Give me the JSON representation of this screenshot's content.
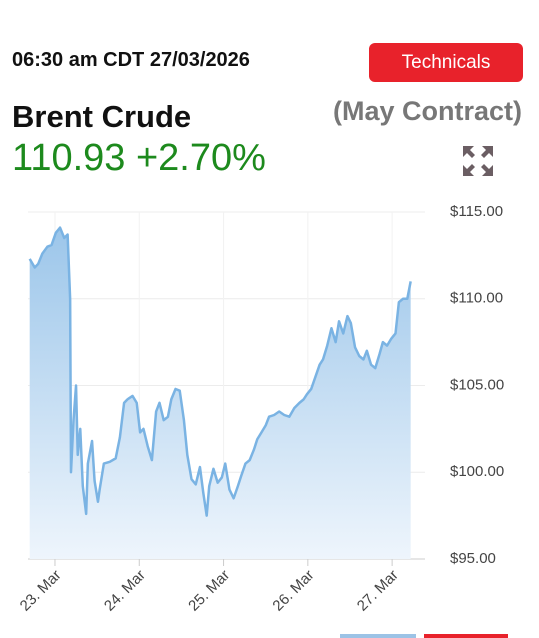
{
  "header": {
    "timestamp": "06:30 am CDT 27/03/2026",
    "button": "Technicals",
    "name": "Brent Crude",
    "contract": "(May Contract)",
    "price": "110.93",
    "change": "+2.70%"
  },
  "chart_data": {
    "type": "area",
    "color": "#7ab3e3",
    "grid": true,
    "xlim": [
      22.68,
      27.39
    ],
    "ylim": [
      95,
      115
    ],
    "xticks": [
      {
        "value": 23,
        "label": "23. Mar"
      },
      {
        "value": 24,
        "label": "24. Mar"
      },
      {
        "value": 25,
        "label": "25. Mar"
      },
      {
        "value": 26,
        "label": "26. Mar"
      },
      {
        "value": 27,
        "label": "27. Mar"
      }
    ],
    "yticks": [
      {
        "value": 95,
        "label": "$95.00"
      },
      {
        "value": 100,
        "label": "$100.00"
      },
      {
        "value": 105,
        "label": "$105.00"
      },
      {
        "value": 110,
        "label": "$110.00"
      },
      {
        "value": 115,
        "label": "$115.00"
      }
    ],
    "x": [
      22.7,
      22.76,
      22.8,
      22.85,
      22.91,
      22.96,
      23.01,
      23.06,
      23.11,
      23.15,
      23.18,
      23.19,
      23.22,
      23.25,
      23.27,
      23.3,
      23.33,
      23.37,
      23.39,
      23.44,
      23.47,
      23.51,
      23.53,
      23.58,
      23.65,
      23.72,
      23.77,
      23.82,
      23.86,
      23.92,
      23.97,
      24.01,
      24.05,
      24.1,
      24.15,
      24.2,
      24.24,
      24.29,
      24.34,
      24.38,
      24.43,
      24.48,
      24.53,
      24.57,
      24.62,
      24.67,
      24.72,
      24.76,
      24.8,
      24.83,
      24.88,
      24.93,
      24.98,
      25.02,
      25.07,
      25.12,
      25.17,
      25.21,
      25.26,
      25.31,
      25.36,
      25.4,
      25.45,
      25.5,
      25.54,
      25.6,
      25.66,
      25.72,
      25.78,
      25.84,
      25.9,
      25.95,
      25.99,
      26.04,
      26.09,
      26.14,
      26.18,
      26.23,
      26.28,
      26.33,
      26.37,
      26.42,
      26.47,
      26.51,
      26.56,
      26.61,
      26.66,
      26.7,
      26.75,
      26.8,
      26.85,
      26.89,
      26.94,
      26.99,
      27.04,
      27.08,
      27.13,
      27.18,
      27.22
    ],
    "values": [
      112.3,
      111.8,
      112.0,
      112.6,
      113.0,
      113.1,
      113.8,
      114.1,
      113.5,
      113.7,
      110.0,
      100.0,
      103.0,
      105.0,
      101.0,
      102.5,
      99.2,
      97.6,
      100.5,
      101.8,
      99.5,
      98.3,
      99.0,
      100.5,
      100.6,
      100.8,
      102.0,
      104.0,
      104.2,
      104.4,
      104.0,
      102.3,
      102.5,
      101.5,
      100.7,
      103.5,
      104.0,
      103.0,
      103.2,
      104.2,
      104.8,
      104.7,
      103.0,
      101.0,
      99.6,
      99.3,
      100.3,
      98.8,
      97.5,
      99.2,
      100.2,
      99.4,
      99.7,
      100.5,
      99.0,
      98.5,
      99.2,
      99.8,
      100.5,
      100.7,
      101.3,
      101.9,
      102.3,
      102.7,
      103.2,
      103.3,
      103.5,
      103.3,
      103.2,
      103.7,
      104.0,
      104.2,
      104.5,
      104.8,
      105.5,
      106.2,
      106.5,
      107.3,
      108.3,
      107.5,
      108.7,
      108.0,
      109.0,
      108.6,
      107.2,
      106.7,
      106.5,
      107.0,
      106.2,
      106.0,
      106.8,
      107.5,
      107.3,
      107.7,
      108.0,
      109.8,
      110.0,
      110.0,
      111.0
    ]
  }
}
